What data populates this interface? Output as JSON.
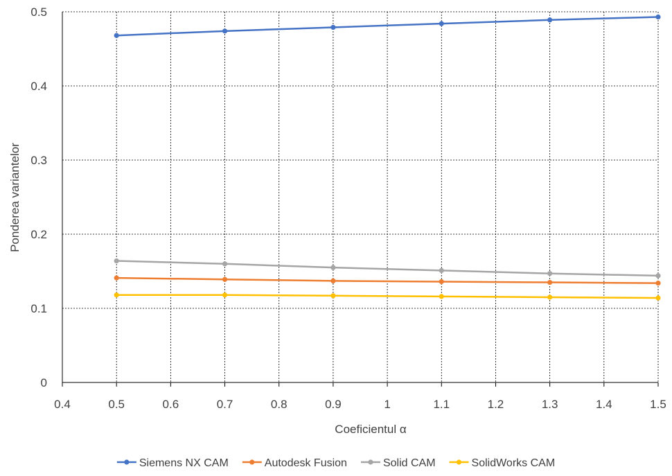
{
  "chart_data": {
    "type": "line",
    "title": "",
    "xlabel": "Coeficientul  α",
    "ylabel": "Ponderea variantelor",
    "xlim": [
      0.4,
      1.5
    ],
    "ylim": [
      0,
      0.5
    ],
    "x_ticks": [
      "0.4",
      "0.5",
      "0.6",
      "0.7",
      "0.8",
      "0.9",
      "1",
      "1.1",
      "1.2",
      "1.3",
      "1.4",
      "1.5"
    ],
    "y_ticks": [
      "0",
      "0.1",
      "0.2",
      "0.3",
      "0.4",
      "0.5"
    ],
    "grid": true,
    "legend_position": "bottom",
    "x": [
      0.5,
      0.7,
      0.9,
      1.1,
      1.3,
      1.5
    ],
    "series": [
      {
        "name": "Siemens NX CAM",
        "color": "#4472C4",
        "values": [
          0.468,
          0.474,
          0.479,
          0.484,
          0.489,
          0.493
        ]
      },
      {
        "name": "Autodesk Fusion",
        "color": "#ED7D31",
        "values": [
          0.141,
          0.139,
          0.137,
          0.136,
          0.135,
          0.134
        ]
      },
      {
        "name": "Solid CAM",
        "color": "#A5A5A5",
        "values": [
          0.164,
          0.16,
          0.155,
          0.151,
          0.147,
          0.144
        ]
      },
      {
        "name": "SolidWorks CAM",
        "color": "#FFC000",
        "values": [
          0.118,
          0.118,
          0.117,
          0.116,
          0.115,
          0.114
        ]
      }
    ]
  }
}
